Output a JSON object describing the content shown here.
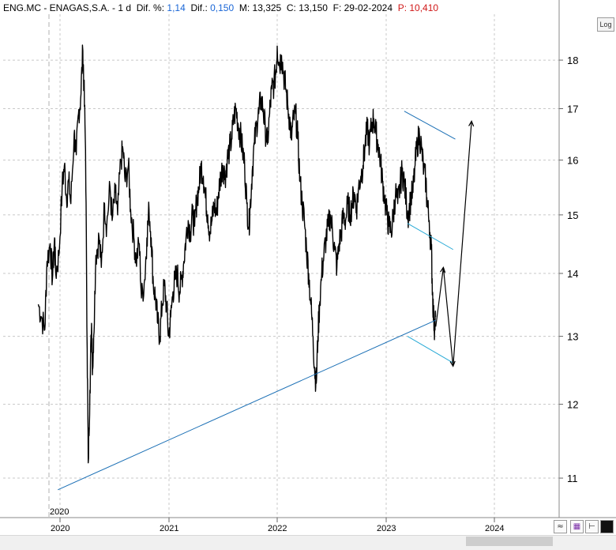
{
  "header": {
    "ticker": "ENG.MC - ENAGAS,S.A. - ",
    "interval": "1 d",
    "dif_pct_label": "Dif. %:",
    "dif_pct_value": "1,14",
    "dif_label": "Dif.:",
    "dif_value": "0,150",
    "max_label": "M:",
    "max_value": "13,325",
    "close_label": "C:",
    "close_value": "13,150",
    "date_label": "F:",
    "date_value": "29-02-2024",
    "p_label": "P:",
    "p_value": "10,410"
  },
  "controls": {
    "log_button": "Log"
  },
  "colors": {
    "price": "#000000",
    "trendline": "#1a6fb5",
    "channel": "#27a9d6",
    "projection": "#000000",
    "grid": "#c8c8c8",
    "dif_value": "#1a66d6",
    "p_label": "#d01818"
  },
  "chart_data": {
    "type": "line",
    "title": "",
    "xlabel": "",
    "ylabel": "",
    "y_scale": "log",
    "ylim": [
      10.5,
      19.0
    ],
    "xlim": [
      2019.8,
      2024.75
    ],
    "y_ticks": [
      "11",
      "12",
      "13",
      "14",
      "15",
      "16",
      "17",
      "18"
    ],
    "x_ticks": [
      "2020",
      "2021",
      "2022",
      "2023",
      "2024"
    ],
    "grid": true,
    "annotation_label": "2020",
    "series": [
      {
        "points": [
          [
            2019.8,
            13.5
          ],
          [
            2019.83,
            13.3
          ],
          [
            2019.86,
            13.1
          ],
          [
            2019.88,
            14.2
          ],
          [
            2019.91,
            14.5
          ],
          [
            2019.93,
            13.9
          ],
          [
            2019.95,
            14.6
          ],
          [
            2019.96,
            14.0
          ],
          [
            2019.99,
            14.3
          ],
          [
            2020.02,
            15.5
          ],
          [
            2020.04,
            15.9
          ],
          [
            2020.06,
            15.3
          ],
          [
            2020.08,
            15.6
          ],
          [
            2020.1,
            15.2
          ],
          [
            2020.13,
            16.5
          ],
          [
            2020.15,
            16.1
          ],
          [
            2020.17,
            16.9
          ],
          [
            2020.19,
            17.2
          ],
          [
            2020.21,
            18.2
          ],
          [
            2020.22,
            17.5
          ],
          [
            2020.235,
            16.2
          ],
          [
            2020.25,
            12.8
          ],
          [
            2020.26,
            11.2
          ],
          [
            2020.275,
            12.2
          ],
          [
            2020.29,
            13.2
          ],
          [
            2020.3,
            12.5
          ],
          [
            2020.31,
            13.0
          ],
          [
            2020.33,
            14.3
          ],
          [
            2020.36,
            14.6
          ],
          [
            2020.38,
            14.1
          ],
          [
            2020.41,
            15.2
          ],
          [
            2020.43,
            14.8
          ],
          [
            2020.46,
            15.5
          ],
          [
            2020.48,
            14.9
          ],
          [
            2020.51,
            15.4
          ],
          [
            2020.53,
            15.0
          ],
          [
            2020.56,
            16.0
          ],
          [
            2020.58,
            16.2
          ],
          [
            2020.6,
            15.6
          ],
          [
            2020.63,
            15.9
          ],
          [
            2020.65,
            15.1
          ],
          [
            2020.68,
            14.6
          ],
          [
            2020.7,
            14.2
          ],
          [
            2020.73,
            14.5
          ],
          [
            2020.75,
            13.6
          ],
          [
            2020.78,
            13.9
          ],
          [
            2020.8,
            14.6
          ],
          [
            2020.82,
            15.1
          ],
          [
            2020.84,
            14.6
          ],
          [
            2020.86,
            13.8
          ],
          [
            2020.88,
            13.6
          ],
          [
            2020.9,
            13.2
          ],
          [
            2020.92,
            13.0
          ],
          [
            2020.94,
            13.5
          ],
          [
            2020.96,
            13.8
          ],
          [
            2020.98,
            13.5
          ],
          [
            2021.0,
            13.0
          ],
          [
            2021.02,
            13.3
          ],
          [
            2021.04,
            13.7
          ],
          [
            2021.06,
            13.9
          ],
          [
            2021.08,
            14.0
          ],
          [
            2021.1,
            13.7
          ],
          [
            2021.12,
            13.9
          ],
          [
            2021.14,
            14.2
          ],
          [
            2021.16,
            14.6
          ],
          [
            2021.18,
            14.9
          ],
          [
            2021.2,
            14.7
          ],
          [
            2021.22,
            15.0
          ],
          [
            2021.24,
            14.8
          ],
          [
            2021.26,
            15.3
          ],
          [
            2021.28,
            15.5
          ],
          [
            2021.3,
            15.9
          ],
          [
            2021.32,
            15.7
          ],
          [
            2021.34,
            15.3
          ],
          [
            2021.36,
            15.0
          ],
          [
            2021.38,
            14.7
          ],
          [
            2021.4,
            14.9
          ],
          [
            2021.42,
            15.2
          ],
          [
            2021.44,
            15.0
          ],
          [
            2021.46,
            15.4
          ],
          [
            2021.48,
            15.7
          ],
          [
            2021.5,
            15.9
          ],
          [
            2021.52,
            15.7
          ],
          [
            2021.54,
            16.0
          ],
          [
            2021.56,
            16.2
          ],
          [
            2021.58,
            16.4
          ],
          [
            2021.6,
            16.8
          ],
          [
            2021.62,
            17.0
          ],
          [
            2021.64,
            16.7
          ],
          [
            2021.66,
            16.5
          ],
          [
            2021.68,
            16.2
          ],
          [
            2021.7,
            15.9
          ],
          [
            2021.72,
            15.2
          ],
          [
            2021.74,
            14.8
          ],
          [
            2021.75,
            15.1
          ],
          [
            2021.77,
            15.8
          ],
          [
            2021.79,
            16.3
          ],
          [
            2021.81,
            16.7
          ],
          [
            2021.83,
            16.9
          ],
          [
            2021.85,
            17.2
          ],
          [
            2021.87,
            17.0
          ],
          [
            2021.89,
            16.6
          ],
          [
            2021.91,
            16.3
          ],
          [
            2021.93,
            16.9
          ],
          [
            2021.95,
            17.4
          ],
          [
            2021.97,
            17.5
          ],
          [
            2021.99,
            17.8
          ],
          [
            2022.0,
            18.3
          ],
          [
            2022.02,
            17.9
          ],
          [
            2022.04,
            18.1
          ],
          [
            2022.06,
            17.7
          ],
          [
            2022.08,
            17.4
          ],
          [
            2022.1,
            17.0
          ],
          [
            2022.12,
            16.7
          ],
          [
            2022.13,
            16.4
          ],
          [
            2022.15,
            16.8
          ],
          [
            2022.17,
            16.9
          ],
          [
            2022.19,
            16.4
          ],
          [
            2022.21,
            15.6
          ],
          [
            2022.23,
            15.2
          ],
          [
            2022.25,
            14.9
          ],
          [
            2022.27,
            14.4
          ],
          [
            2022.29,
            14.0
          ],
          [
            2022.31,
            13.5
          ],
          [
            2022.33,
            13.0
          ],
          [
            2022.345,
            12.5
          ],
          [
            2022.36,
            12.3
          ],
          [
            2022.375,
            13.0
          ],
          [
            2022.39,
            13.5
          ],
          [
            2022.41,
            14.0
          ],
          [
            2022.43,
            14.3
          ],
          [
            2022.45,
            14.6
          ],
          [
            2022.47,
            14.8
          ],
          [
            2022.49,
            15.0
          ],
          [
            2022.51,
            14.7
          ],
          [
            2022.53,
            14.4
          ],
          [
            2022.55,
            14.1
          ],
          [
            2022.57,
            14.5
          ],
          [
            2022.59,
            14.7
          ],
          [
            2022.61,
            15.0
          ],
          [
            2022.63,
            14.9
          ],
          [
            2022.65,
            15.2
          ],
          [
            2022.67,
            15.0
          ],
          [
            2022.69,
            15.2
          ],
          [
            2022.71,
            15.4
          ],
          [
            2022.73,
            15.1
          ],
          [
            2022.75,
            15.5
          ],
          [
            2022.77,
            15.7
          ],
          [
            2022.79,
            15.9
          ],
          [
            2022.81,
            16.3
          ],
          [
            2022.83,
            16.6
          ],
          [
            2022.85,
            16.3
          ],
          [
            2022.87,
            16.7
          ],
          [
            2022.89,
            16.8
          ],
          [
            2022.91,
            16.5
          ],
          [
            2022.93,
            16.3
          ],
          [
            2022.95,
            16.0
          ],
          [
            2022.97,
            15.6
          ],
          [
            2022.99,
            15.3
          ],
          [
            2023.01,
            15.0
          ],
          [
            2023.03,
            14.8
          ],
          [
            2023.05,
            14.7
          ],
          [
            2023.07,
            15.0
          ],
          [
            2023.09,
            15.4
          ],
          [
            2023.11,
            15.2
          ],
          [
            2023.13,
            15.5
          ],
          [
            2023.15,
            15.8
          ],
          [
            2023.17,
            15.6
          ],
          [
            2023.19,
            15.2
          ],
          [
            2023.21,
            15.0
          ],
          [
            2023.23,
            15.3
          ],
          [
            2023.25,
            15.4
          ],
          [
            2023.27,
            15.9
          ],
          [
            2023.29,
            16.3
          ],
          [
            2023.31,
            16.5
          ],
          [
            2023.33,
            16.2
          ],
          [
            2023.35,
            15.8
          ],
          [
            2023.37,
            15.6
          ],
          [
            2023.38,
            15.2
          ],
          [
            2023.4,
            14.9
          ],
          [
            2023.42,
            14.4
          ],
          [
            2023.43,
            13.7
          ],
          [
            2023.44,
            13.3
          ],
          [
            2023.45,
            13.15
          ],
          [
            2023.46,
            13.3
          ]
        ]
      }
    ],
    "annotations": {
      "support_line": [
        [
          2019.98,
          10.85
        ],
        [
          2023.46,
          13.25
        ]
      ],
      "channel_upper": [
        [
          2023.17,
          16.95
        ],
        [
          2023.64,
          16.4
        ]
      ],
      "channel_middle": [
        [
          2023.2,
          14.85
        ],
        [
          2023.62,
          14.4
        ]
      ],
      "channel_lower": [
        [
          2023.2,
          13.0
        ],
        [
          2023.62,
          12.6
        ]
      ],
      "projection": [
        [
          2023.46,
          13.15
        ],
        [
          2023.53,
          14.1
        ],
        [
          2023.62,
          12.55
        ],
        [
          2023.79,
          16.75
        ]
      ]
    }
  }
}
